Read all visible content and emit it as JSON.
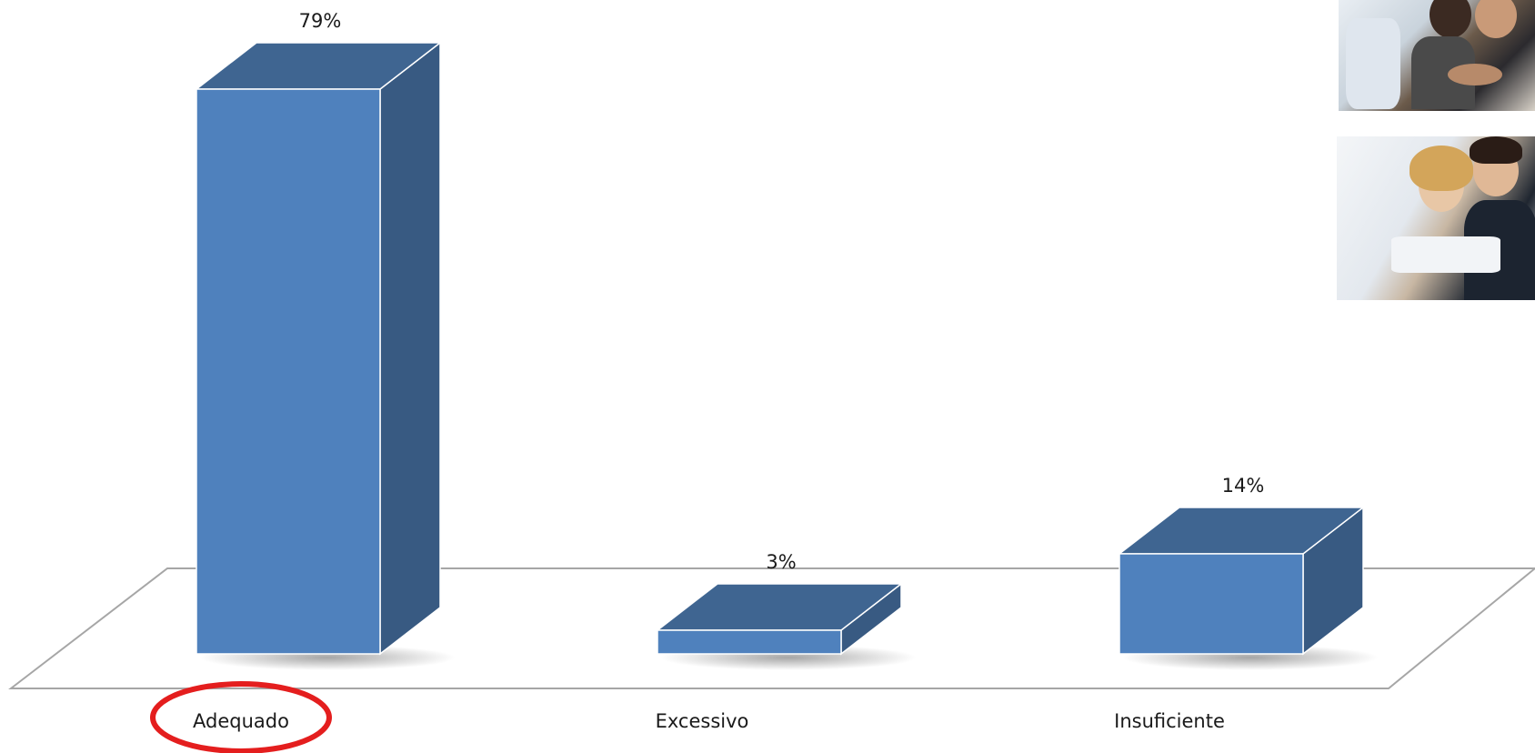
{
  "chart_data": {
    "type": "bar",
    "categories": [
      "Adequado",
      "Excessivo",
      "Insuficiente"
    ],
    "values": [
      79,
      3,
      14
    ],
    "data_labels": [
      "79%",
      "3%",
      "14%"
    ],
    "ylim": [
      0,
      100
    ],
    "unit": "%",
    "style": "3d-column",
    "grid": false,
    "legend": "none",
    "colors": {
      "front": "#4F81BD",
      "top": "#3F6591",
      "side": "#385A82",
      "floor_line": "#A6A6A6",
      "highlight": "#E41E1E"
    },
    "highlighted_category": "Adequado"
  },
  "images": [
    {
      "name": "handshake-photo"
    },
    {
      "name": "business-meeting-photo"
    }
  ]
}
